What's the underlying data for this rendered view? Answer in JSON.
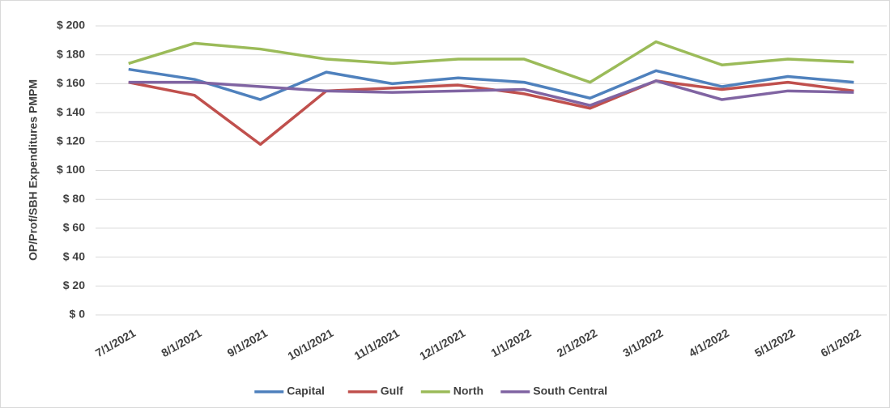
{
  "chart_data": {
    "type": "line",
    "y_label": "OP/Prof/SBH Expenditures PMPM",
    "categories": [
      "7/1/2021",
      "8/1/2021",
      "9/1/2021",
      "10/1/2021",
      "11/1/2021",
      "12/1/2021",
      "1/1/2022",
      "2/1/2022",
      "3/1/2022",
      "4/1/2022",
      "5/1/2022",
      "6/1/2022"
    ],
    "series": [
      {
        "name": "Capital",
        "color": "#4f81bd",
        "values": [
          170,
          163,
          149,
          168,
          160,
          164,
          161,
          150,
          169,
          158,
          165,
          161
        ]
      },
      {
        "name": "Gulf",
        "color": "#c0504d",
        "values": [
          161,
          152,
          118,
          155,
          157,
          159,
          153,
          143,
          162,
          156,
          161,
          155
        ]
      },
      {
        "name": "North",
        "color": "#9bbb59",
        "values": [
          174,
          188,
          184,
          177,
          174,
          177,
          177,
          161,
          189,
          173,
          177,
          175
        ]
      },
      {
        "name": "South Central",
        "color": "#8064a2",
        "values": [
          161,
          161,
          158,
          155,
          154,
          155,
          156,
          145,
          162,
          149,
          155,
          154
        ]
      }
    ],
    "ylim": [
      0,
      200
    ],
    "yticks": [
      {
        "value": 0,
        "label": "$ 0"
      },
      {
        "value": 20,
        "label": "$ 20"
      },
      {
        "value": 40,
        "label": "$ 40"
      },
      {
        "value": 60,
        "label": "$ 60"
      },
      {
        "value": 80,
        "label": "$ 80"
      },
      {
        "value": 100,
        "label": "$ 100"
      },
      {
        "value": 120,
        "label": "$ 120"
      },
      {
        "value": 140,
        "label": "$ 140"
      },
      {
        "value": 160,
        "label": "$ 160"
      },
      {
        "value": 180,
        "label": "$ 180"
      },
      {
        "value": 200,
        "label": "$ 200"
      }
    ],
    "grid": true,
    "legend": "bottom"
  }
}
